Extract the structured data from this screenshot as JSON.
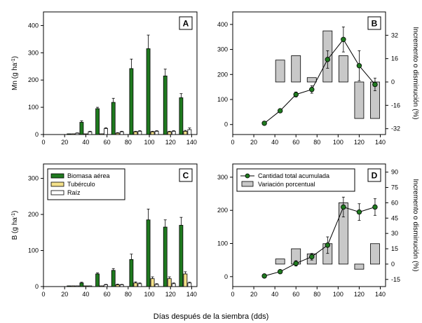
{
  "figure": {
    "xlabel": "Días después de la siembra (dds)"
  },
  "chart_data": [
    {
      "panel": "A",
      "type": "bar",
      "ylabel": "Mn (g ha",
      "ylabel_sup": "-1",
      "ylabel_close": ")",
      "ylim": [
        0,
        450
      ],
      "yticks": [
        0,
        100,
        200,
        300,
        400
      ],
      "xlim": [
        0,
        145
      ],
      "xticks": [
        0,
        20,
        40,
        60,
        80,
        100,
        120,
        140
      ],
      "days": [
        28,
        40,
        55,
        70,
        87,
        103,
        119,
        134
      ],
      "series": [
        {
          "name": "Biomasa aérea",
          "color": "#1f7a1f",
          "values": [
            0,
            45,
            95,
            118,
            242,
            315,
            215,
            135
          ],
          "err": [
            0,
            5,
            5,
            15,
            35,
            50,
            25,
            15
          ]
        },
        {
          "name": "Tubérculo",
          "color": "#f3e08a",
          "values": [
            0,
            0,
            0,
            5,
            10,
            10,
            10,
            12
          ],
          "err": [
            0,
            0,
            0,
            2,
            2,
            2,
            2,
            3
          ]
        },
        {
          "name": "Raíz",
          "color": "#ffffff",
          "values": [
            5,
            10,
            22,
            10,
            12,
            12,
            12,
            18
          ],
          "err": [
            1,
            2,
            3,
            2,
            2,
            2,
            2,
            6
          ]
        }
      ]
    },
    {
      "panel": "B",
      "type": "line",
      "ylim": [
        -40,
        450
      ],
      "yticks": [
        0,
        100,
        200,
        300,
        400
      ],
      "xlim": [
        0,
        145
      ],
      "xticks": [
        0,
        20,
        40,
        60,
        80,
        100,
        120,
        140
      ],
      "y2label": "Incremento o disminución (%)",
      "y2ticks": [
        -32,
        -16,
        0,
        16,
        32
      ],
      "y2lim": [
        -36,
        48
      ],
      "line": {
        "name": "Cantidad total acumulada",
        "x": [
          30,
          45,
          60,
          75,
          90,
          105,
          120,
          135
        ],
        "y": [
          5,
          55,
          120,
          140,
          260,
          340,
          235,
          160
        ],
        "err": [
          2,
          5,
          10,
          15,
          35,
          50,
          60,
          25
        ]
      },
      "bars": {
        "name": "Variación porcentual",
        "x": [
          45,
          60,
          75,
          90,
          105,
          120,
          135
        ],
        "y": [
          15,
          18,
          3,
          35,
          18,
          -25,
          -25
        ]
      }
    },
    {
      "panel": "C",
      "type": "bar",
      "ylabel": "B (g ha",
      "ylabel_sup": "-1",
      "ylabel_close": ")",
      "ylim": [
        0,
        340
      ],
      "yticks": [
        0,
        100,
        200,
        300
      ],
      "xlim": [
        0,
        145
      ],
      "xticks": [
        0,
        20,
        40,
        60,
        80,
        100,
        120,
        140
      ],
      "days": [
        28,
        40,
        55,
        70,
        87,
        103,
        119,
        134
      ],
      "series": [
        {
          "name": "Biomasa aérea",
          "color": "#1f7a1f",
          "values": [
            0,
            10,
            35,
            45,
            75,
            185,
            165,
            170
          ],
          "err": [
            0,
            2,
            3,
            5,
            15,
            30,
            20,
            22
          ]
        },
        {
          "name": "Tubérculo",
          "color": "#f3e08a",
          "values": [
            0,
            0,
            0,
            5,
            10,
            22,
            22,
            35
          ],
          "err": [
            0,
            0,
            0,
            2,
            3,
            5,
            5,
            6
          ]
        },
        {
          "name": "Raíz",
          "color": "#ffffff",
          "values": [
            0,
            0,
            5,
            5,
            8,
            6,
            8,
            10
          ],
          "err": [
            0,
            0,
            1,
            1,
            2,
            2,
            2,
            2
          ]
        }
      ],
      "legend": [
        "Biomasa aérea",
        "Tubérculo",
        "Raíz"
      ]
    },
    {
      "panel": "D",
      "type": "line",
      "ylim": [
        -30,
        340
      ],
      "yticks": [
        0,
        100,
        200,
        300
      ],
      "xlim": [
        0,
        145
      ],
      "xticks": [
        0,
        20,
        40,
        60,
        80,
        100,
        120,
        140
      ],
      "y2label": "Incremento o disminución (%)",
      "y2ticks": [
        -15,
        0,
        15,
        30,
        45,
        60,
        75,
        90
      ],
      "y2lim": [
        -22,
        98
      ],
      "line": {
        "name": "Cantidad total acumulada",
        "x": [
          30,
          45,
          60,
          75,
          90,
          105,
          120,
          135
        ],
        "y": [
          2,
          15,
          40,
          60,
          95,
          210,
          195,
          210
        ],
        "err": [
          2,
          4,
          8,
          10,
          25,
          30,
          25,
          25
        ]
      },
      "bars": {
        "name": "Variación porcentual",
        "x": [
          45,
          60,
          75,
          90,
          105,
          120,
          135
        ],
        "y": [
          5,
          15,
          10,
          20,
          60,
          -5,
          20
        ]
      },
      "legend": [
        "Cantidad total acumulada",
        "Variación porcentual"
      ]
    }
  ]
}
